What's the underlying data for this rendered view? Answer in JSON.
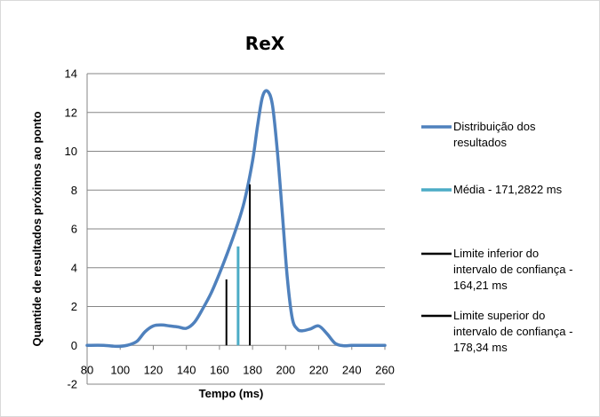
{
  "chart_data": {
    "type": "line",
    "title": "ReX",
    "xlabel": "Tempo (ms)",
    "ylabel": "Quantide de resultados próximos ao ponto",
    "xlim": [
      80,
      260
    ],
    "ylim": [
      -2,
      14
    ],
    "x_ticks": [
      80,
      100,
      120,
      140,
      160,
      180,
      200,
      220,
      240,
      260
    ],
    "y_ticks": [
      -2,
      0,
      2,
      4,
      6,
      8,
      10,
      12,
      14
    ],
    "grid": "horizontal",
    "legend_position": "right",
    "series": [
      {
        "name": "Distribuição dos resultados",
        "color": "#4f81bd",
        "x": [
          80,
          90,
          98,
          104,
          110,
          115,
          120,
          125,
          130,
          135,
          140,
          145,
          150,
          155,
          160,
          165,
          170,
          175,
          180,
          183,
          186,
          189,
          192,
          195,
          198,
          201,
          204,
          207,
          210,
          215,
          220,
          225,
          230,
          235,
          240,
          250,
          260
        ],
        "y": [
          0,
          0,
          -0.05,
          0,
          0.2,
          0.7,
          1.0,
          1.05,
          1.0,
          0.95,
          0.88,
          1.2,
          1.9,
          2.7,
          3.7,
          4.8,
          6.0,
          7.4,
          9.5,
          11.3,
          12.8,
          13.1,
          12.4,
          10.0,
          6.8,
          3.5,
          1.4,
          0.85,
          0.75,
          0.85,
          1.0,
          0.6,
          0.1,
          -0.02,
          0,
          0,
          0
        ]
      },
      {
        "name": "Média - 171,2822 ms",
        "color": "#4bacc6",
        "x": [
          171.2822,
          171.2822
        ],
        "y": [
          0,
          5.1
        ]
      },
      {
        "name": "Limite inferior do intervalo de confiança - 164,21 ms",
        "color": "#000000",
        "x": [
          164.21,
          164.21
        ],
        "y": [
          0,
          3.4
        ]
      },
      {
        "name": "Limite superior do intervalo de confiança - 178,34 ms",
        "color": "#000000",
        "x": [
          178.34,
          178.34
        ],
        "y": [
          0,
          8.3
        ]
      }
    ]
  },
  "legend": [
    {
      "color": "#4f81bd",
      "lines": [
        "Distribuição dos",
        "resultados"
      ]
    },
    {
      "color": "#4bacc6",
      "lines": [
        "Média - 171,2822 ms"
      ]
    },
    {
      "color": "#000000",
      "lines": [
        "Limite inferior do",
        "intervalo de confiança -",
        "164,21 ms"
      ]
    },
    {
      "color": "#000000",
      "lines": [
        "Limite superior do",
        "intervalo de confiança -",
        "178,34 ms"
      ]
    }
  ]
}
